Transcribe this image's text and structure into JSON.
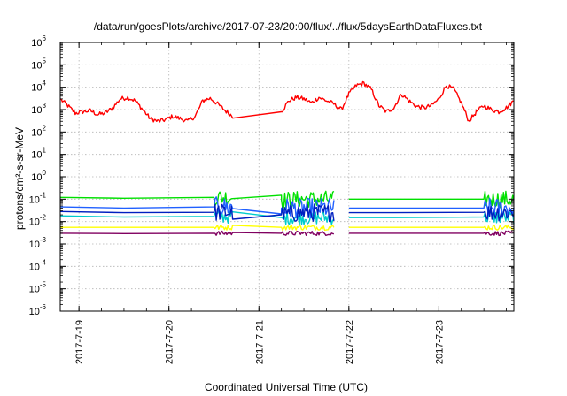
{
  "chart_data": {
    "type": "line",
    "title": "/data/run/goesPlots/archive/2017-07-23/20:00/flux/../flux/5daysEarthDataFluxes.txt",
    "xlabel": "Coordinated Universal Time (UTC)",
    "ylabel": "protons/cm²-s-sr-MeV",
    "yscale": "log",
    "ylim": [
      1e-06,
      1000000.0
    ],
    "xlim": [
      "2017-07-18 19:00",
      "2017-07-23 20:00"
    ],
    "grid": true,
    "legend": "none",
    "x_ticks": [
      "2017-7-19",
      "2017-7-20",
      "2017-7-21",
      "2017-7-22",
      "2017-7-23"
    ],
    "y_ticks": [
      {
        "base": "10",
        "exp": "-6"
      },
      {
        "base": "10",
        "exp": "-5"
      },
      {
        "base": "10",
        "exp": "-4"
      },
      {
        "base": "10",
        "exp": "-3"
      },
      {
        "base": "10",
        "exp": "-2"
      },
      {
        "base": "10",
        "exp": "-1"
      },
      {
        "base": "10",
        "exp": "0"
      },
      {
        "base": "10",
        "exp": "1"
      },
      {
        "base": "10",
        "exp": "2"
      },
      {
        "base": "10",
        "exp": "3"
      },
      {
        "base": "10",
        "exp": "4"
      },
      {
        "base": "10",
        "exp": "5"
      },
      {
        "base": "10",
        "exp": "6"
      }
    ],
    "series": [
      {
        "color": "#ff0000",
        "noise": 0.1,
        "x": [
          "2017-07-18 19:00",
          "2017-07-18 21:00",
          "2017-07-18 23:00",
          "2017-07-19 01:00",
          "2017-07-19 03:00",
          "2017-07-19 05:00",
          "2017-07-19 07:00",
          "2017-07-19 09:00",
          "2017-07-19 11:00",
          "2017-07-19 13:00",
          "2017-07-19 15:00",
          "2017-07-19 17:00",
          "2017-07-19 19:00",
          "2017-07-19 21:00",
          "2017-07-19 23:00",
          "2017-07-20 01:00",
          "2017-07-20 03:00",
          "2017-07-20 05:00",
          "2017-07-20 07:00",
          "2017-07-20 09:00",
          "2017-07-20 11:00",
          "2017-07-20 13:00",
          "2017-07-20 15:00",
          "2017-07-20 17:00",
          "2017-07-21 06:00",
          "2017-07-21 08:00",
          "2017-07-21 10:00",
          "2017-07-21 12:00",
          "2017-07-21 14:00",
          "2017-07-21 16:00",
          "2017-07-21 18:00",
          "2017-07-21 20:00",
          "2017-07-21 22:00",
          "2017-07-22 00:00",
          "2017-07-22 02:00",
          "2017-07-22 04:00",
          "2017-07-22 06:00",
          "2017-07-22 08:00",
          "2017-07-22 10:00",
          "2017-07-22 12:00",
          "2017-07-22 14:00",
          "2017-07-22 16:00",
          "2017-07-22 18:00",
          "2017-07-22 20:00",
          "2017-07-22 22:00",
          "2017-07-23 00:00",
          "2017-07-23 02:00",
          "2017-07-23 04:00",
          "2017-07-23 06:00",
          "2017-07-23 08:00",
          "2017-07-23 10:00",
          "2017-07-23 12:00",
          "2017-07-23 14:00",
          "2017-07-23 16:00",
          "2017-07-23 18:00",
          "2017-07-23 20:00"
        ],
        "values": [
          3000,
          1500,
          700,
          800,
          900,
          600,
          700,
          1200,
          3000,
          3500,
          2500,
          1000,
          400,
          300,
          350,
          500,
          400,
          300,
          500,
          2500,
          3200,
          1800,
          900,
          500,
          800,
          2500,
          3500,
          3000,
          2000,
          3500,
          2500,
          1800,
          1000,
          5000,
          12000,
          15000,
          8000,
          1500,
          800,
          1200,
          5000,
          2500,
          1400,
          1200,
          1500,
          3000,
          12000,
          8000,
          2000,
          300,
          800,
          1500,
          1000,
          800,
          1200,
          2500
        ]
      },
      {
        "color": "#00e000",
        "noise": 0.38,
        "x": [
          "2017-07-18 19:00",
          "2017-07-19 12:00",
          "2017-07-20 12:00",
          "2017-07-20 17:00",
          "2017-07-21 06:00",
          "2017-07-21 06:00",
          "2017-07-21 12:00",
          "2017-07-21 20:00",
          "2017-07-21 21:00",
          "2017-07-22 00:00",
          "2017-07-22 12:00",
          "2017-07-23 12:00",
          "2017-07-23 20:00"
        ],
        "values": [
          0.12,
          0.11,
          0.12,
          0.12,
          0.15,
          0.09,
          0.1,
          0.1,
          null,
          0.1,
          0.1,
          0.1,
          0.1
        ]
      },
      {
        "color": "#00cccc",
        "noise": 0.32,
        "x": [
          "2017-07-18 19:00",
          "2017-07-19 12:00",
          "2017-07-20 12:00",
          "2017-07-20 17:00",
          "2017-07-21 06:00",
          "2017-07-21 12:00",
          "2017-07-21 20:00",
          "2017-07-21 21:00",
          "2017-07-22 00:00",
          "2017-07-22 12:00",
          "2017-07-23 12:00",
          "2017-07-23 20:00"
        ],
        "values": [
          0.018,
          0.016,
          0.017,
          0.017,
          0.015,
          0.015,
          0.015,
          null,
          0.015,
          0.015,
          0.016,
          0.016
        ]
      },
      {
        "color": "#2060ff",
        "noise": 0.45,
        "x": [
          "2017-07-18 19:00",
          "2017-07-19 12:00",
          "2017-07-20 12:00",
          "2017-07-20 17:00",
          "2017-07-21 06:00",
          "2017-07-21 06:00",
          "2017-07-21 12:00",
          "2017-07-21 20:00",
          "2017-07-21 21:00",
          "2017-07-22 00:00",
          "2017-07-22 12:00",
          "2017-07-23 12:00",
          "2017-07-23 20:00"
        ],
        "values": [
          0.045,
          0.04,
          0.045,
          0.045,
          0.022,
          0.04,
          0.04,
          0.04,
          null,
          0.04,
          0.04,
          0.04,
          0.04
        ]
      },
      {
        "color": "#0020c0",
        "noise": 0.4,
        "x": [
          "2017-07-18 19:00",
          "2017-07-19 12:00",
          "2017-07-20 12:00",
          "2017-07-20 17:00",
          "2017-07-21 06:00",
          "2017-07-21 12:00",
          "2017-07-21 20:00",
          "2017-07-21 21:00",
          "2017-07-22 00:00",
          "2017-07-22 12:00",
          "2017-07-23 12:00",
          "2017-07-23 20:00"
        ],
        "values": [
          0.028,
          0.025,
          0.026,
          0.026,
          0.02,
          0.025,
          0.025,
          null,
          0.025,
          0.025,
          0.026,
          0.026
        ]
      },
      {
        "color": "#ffff00",
        "noise": 0.12,
        "x": [
          "2017-07-18 19:00",
          "2017-07-19 12:00",
          "2017-07-20 12:00",
          "2017-07-20 17:00",
          "2017-07-21 06:00",
          "2017-07-21 12:00",
          "2017-07-21 20:00",
          "2017-07-21 21:00",
          "2017-07-22 00:00",
          "2017-07-22 12:00",
          "2017-07-23 12:00",
          "2017-07-23 20:00"
        ],
        "values": [
          0.0055,
          0.0055,
          0.0055,
          0.0055,
          0.0055,
          0.0055,
          0.0055,
          null,
          0.0055,
          0.0055,
          0.0055,
          0.0055
        ]
      },
      {
        "color": "#800060",
        "noise": 0.1,
        "x": [
          "2017-07-18 19:00",
          "2017-07-19 12:00",
          "2017-07-20 12:00",
          "2017-07-20 17:00",
          "2017-07-21 06:00",
          "2017-07-21 12:00",
          "2017-07-21 20:00",
          "2017-07-21 21:00",
          "2017-07-22 00:00",
          "2017-07-22 12:00",
          "2017-07-23 12:00",
          "2017-07-23 20:00"
        ],
        "values": [
          0.003,
          0.0029,
          0.003,
          0.003,
          0.003,
          0.003,
          0.003,
          null,
          0.003,
          0.003,
          0.003,
          0.003
        ]
      }
    ]
  }
}
